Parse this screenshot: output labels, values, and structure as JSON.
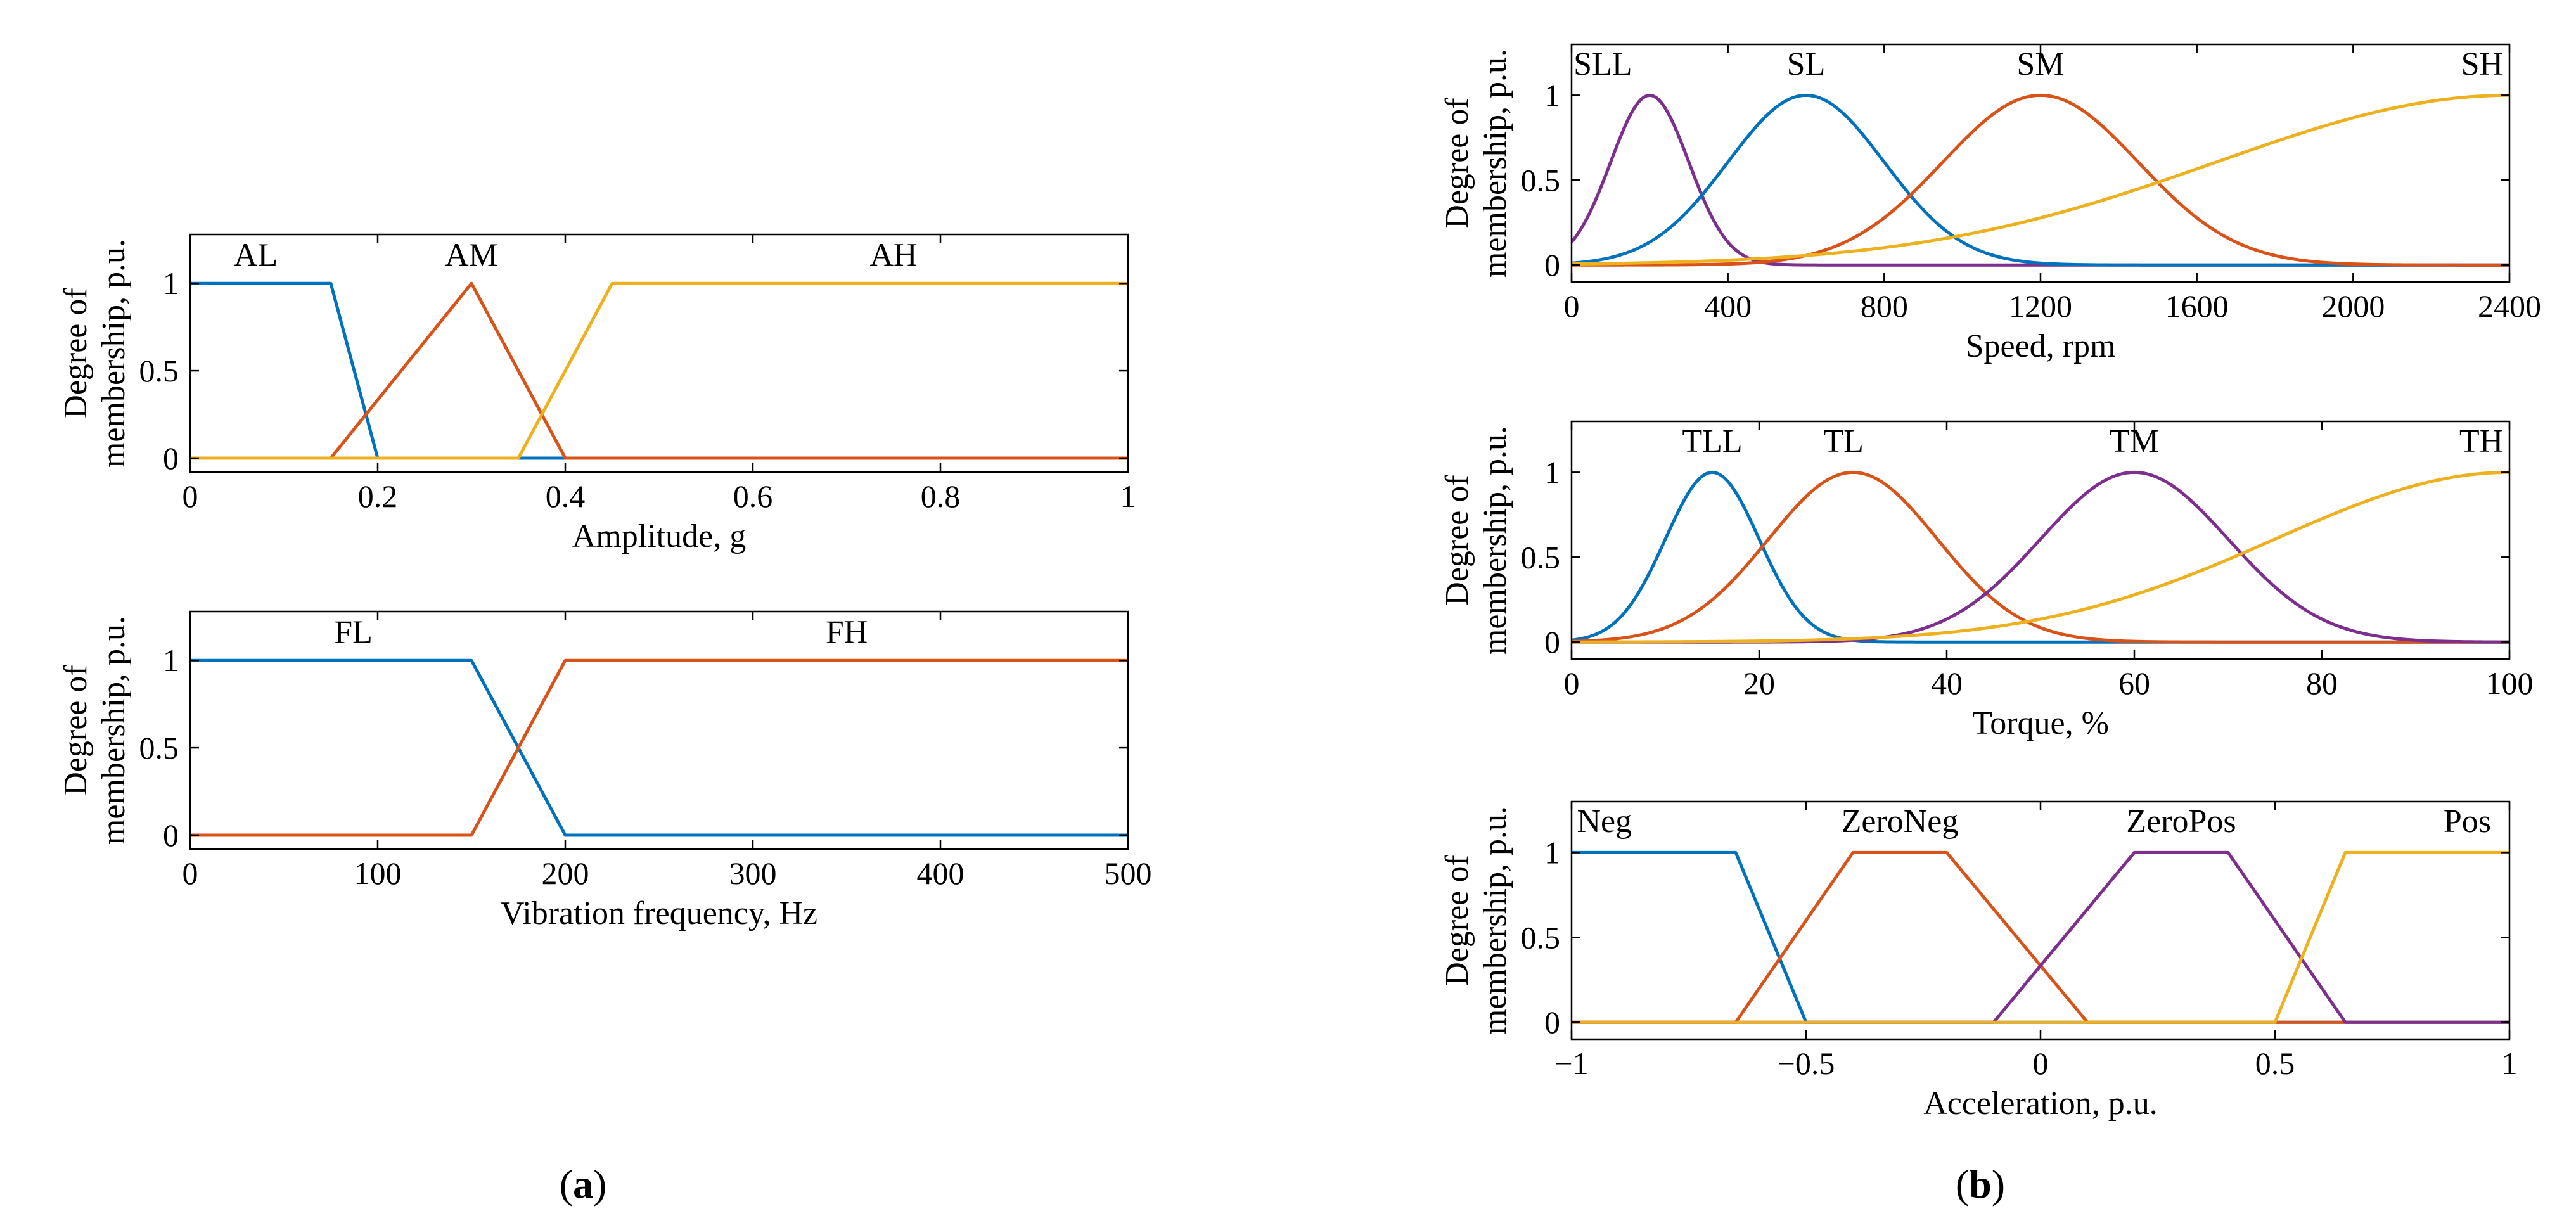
{
  "colors": {
    "blue": "#0072BD",
    "orange": "#D95319",
    "yellow": "#EDB120",
    "purple": "#7E2F8E",
    "axis": "#000000"
  },
  "captions": {
    "a": "a",
    "b": "b"
  },
  "chart_data": [
    {
      "id": "amplitude",
      "type": "line",
      "title": "",
      "xlabel": "Amplitude, g",
      "ylabel": [
        "Degree of",
        "membership, p.u."
      ],
      "xlim": [
        0,
        1
      ],
      "ylim": [
        -0.08,
        1.28
      ],
      "xticks": [
        0,
        0.2,
        0.4,
        0.6,
        0.8,
        1
      ],
      "xticklabels": [
        "0",
        "0.2",
        "0.4",
        "0.6",
        "0.8",
        "1"
      ],
      "yticks": [
        0,
        0.5,
        1
      ],
      "yticklabels": [
        "0",
        "0.5",
        "1"
      ],
      "series": [
        {
          "name": "AL",
          "color": "blue",
          "x": [
            0,
            0.15,
            0.2,
            1
          ],
          "y": [
            1,
            1,
            0,
            0
          ],
          "label_x": 0.07,
          "label_y": 1.1
        },
        {
          "name": "AM",
          "color": "orange",
          "x": [
            0,
            0.15,
            0.3,
            0.4,
            1
          ],
          "y": [
            0,
            0,
            1,
            0,
            0
          ],
          "label_x": 0.3,
          "label_y": 1.1
        },
        {
          "name": "AH",
          "color": "yellow",
          "x": [
            0,
            0.35,
            0.45,
            1
          ],
          "y": [
            0,
            0,
            1,
            1
          ],
          "label_x": 0.75,
          "label_y": 1.1
        }
      ]
    },
    {
      "id": "frequency",
      "type": "line",
      "title": "",
      "xlabel": "Vibration frequency, Hz",
      "ylabel": [
        "Degree of",
        "membership, p.u."
      ],
      "xlim": [
        0,
        500
      ],
      "ylim": [
        -0.08,
        1.28
      ],
      "xticks": [
        0,
        100,
        200,
        300,
        400,
        500
      ],
      "xticklabels": [
        "0",
        "100",
        "200",
        "300",
        "400",
        "500"
      ],
      "yticks": [
        0,
        0.5,
        1
      ],
      "yticklabels": [
        "0",
        "0.5",
        "1"
      ],
      "series": [
        {
          "name": "FL",
          "color": "blue",
          "x": [
            0,
            150,
            200,
            500
          ],
          "y": [
            1,
            1,
            0,
            0
          ],
          "label_x": 87,
          "label_y": 1.1
        },
        {
          "name": "FH",
          "color": "orange",
          "x": [
            0,
            150,
            200,
            500
          ],
          "y": [
            0,
            0,
            1,
            1
          ],
          "label_x": 350,
          "label_y": 1.1
        }
      ]
    },
    {
      "id": "speed",
      "type": "line",
      "title": "",
      "xlabel": "Speed, rpm",
      "ylabel": [
        "Degree of",
        "membership, p.u."
      ],
      "xlim": [
        0,
        2400
      ],
      "ylim": [
        -0.1,
        1.3
      ],
      "xticks": [
        0,
        400,
        800,
        1200,
        1600,
        2000,
        2400
      ],
      "xticklabels": [
        "0",
        "400",
        "800",
        "1200",
        "1600",
        "2000",
        "2400"
      ],
      "yticks": [
        0,
        0.5,
        1
      ],
      "yticklabels": [
        "0",
        "0.5",
        "1"
      ],
      "series": [
        {
          "name": "SLL",
          "color": "purple",
          "gauss": {
            "mean": 200,
            "sigma": 100
          },
          "label_x": 80,
          "label_y": 1.12
        },
        {
          "name": "SL",
          "color": "blue",
          "gauss": {
            "mean": 600,
            "sigma": 200
          },
          "label_x": 600,
          "label_y": 1.12
        },
        {
          "name": "SM",
          "color": "orange",
          "gauss": {
            "mean": 1200,
            "sigma": 250
          },
          "label_x": 1200,
          "label_y": 1.12
        },
        {
          "name": "SH",
          "color": "yellow",
          "gauss": {
            "mean": 2400,
            "sigma": 750
          },
          "label_x": 2330,
          "label_y": 1.12
        }
      ]
    },
    {
      "id": "torque",
      "type": "line",
      "title": "",
      "xlabel": "Torque, %",
      "ylabel": [
        "Degree of",
        "membership, p.u."
      ],
      "xlim": [
        0,
        100
      ],
      "ylim": [
        -0.1,
        1.3
      ],
      "xticks": [
        0,
        20,
        40,
        60,
        80,
        100
      ],
      "xticklabels": [
        "0",
        "20",
        "40",
        "60",
        "80",
        "100"
      ],
      "yticks": [
        0,
        0.5,
        1
      ],
      "yticklabels": [
        "0",
        "0.5",
        "1"
      ],
      "series": [
        {
          "name": "TLL",
          "color": "blue",
          "gauss": {
            "mean": 15,
            "sigma": 5
          },
          "label_x": 15,
          "label_y": 1.12
        },
        {
          "name": "TL",
          "color": "orange",
          "gauss": {
            "mean": 30,
            "sigma": 9
          },
          "label_x": 29,
          "label_y": 1.12
        },
        {
          "name": "TM",
          "color": "purple",
          "gauss": {
            "mean": 60,
            "sigma": 10
          },
          "label_x": 60,
          "label_y": 1.12
        },
        {
          "name": "TH",
          "color": "yellow",
          "gauss": {
            "mean": 100,
            "sigma": 25
          },
          "label_x": 97,
          "label_y": 1.12
        }
      ]
    },
    {
      "id": "acceleration",
      "type": "line",
      "title": "",
      "xlabel": "Acceleration, p.u.",
      "ylabel": [
        "Degree of",
        "membership, p.u."
      ],
      "xlim": [
        -1,
        1
      ],
      "ylim": [
        -0.1,
        1.3
      ],
      "xticks": [
        -1,
        -0.5,
        0,
        0.5,
        1
      ],
      "xticklabels": [
        "−1",
        "−0.5",
        "0",
        "0.5",
        "1"
      ],
      "yticks": [
        0,
        0.5,
        1
      ],
      "yticklabels": [
        "0",
        "0.5",
        "1"
      ],
      "series": [
        {
          "name": "Neg",
          "color": "blue",
          "x": [
            -1,
            -0.65,
            -0.5,
            1
          ],
          "y": [
            1,
            1,
            0,
            0
          ],
          "label_x": -0.93,
          "label_y": 1.12
        },
        {
          "name": "ZeroNeg",
          "color": "orange",
          "x": [
            -1,
            -0.65,
            -0.4,
            -0.2,
            0.1,
            1
          ],
          "y": [
            0,
            0,
            1,
            1,
            0,
            0
          ],
          "label_x": -0.3,
          "label_y": 1.12
        },
        {
          "name": "ZeroPos",
          "color": "purple",
          "x": [
            -1,
            -0.1,
            0.2,
            0.4,
            0.65,
            1
          ],
          "y": [
            0,
            0,
            1,
            1,
            0,
            0
          ],
          "label_x": 0.3,
          "label_y": 1.12
        },
        {
          "name": "Pos",
          "color": "yellow",
          "x": [
            -1,
            0.5,
            0.65,
            1
          ],
          "y": [
            0,
            0,
            1,
            1
          ],
          "label_x": 0.91,
          "label_y": 1.12
        }
      ]
    }
  ]
}
